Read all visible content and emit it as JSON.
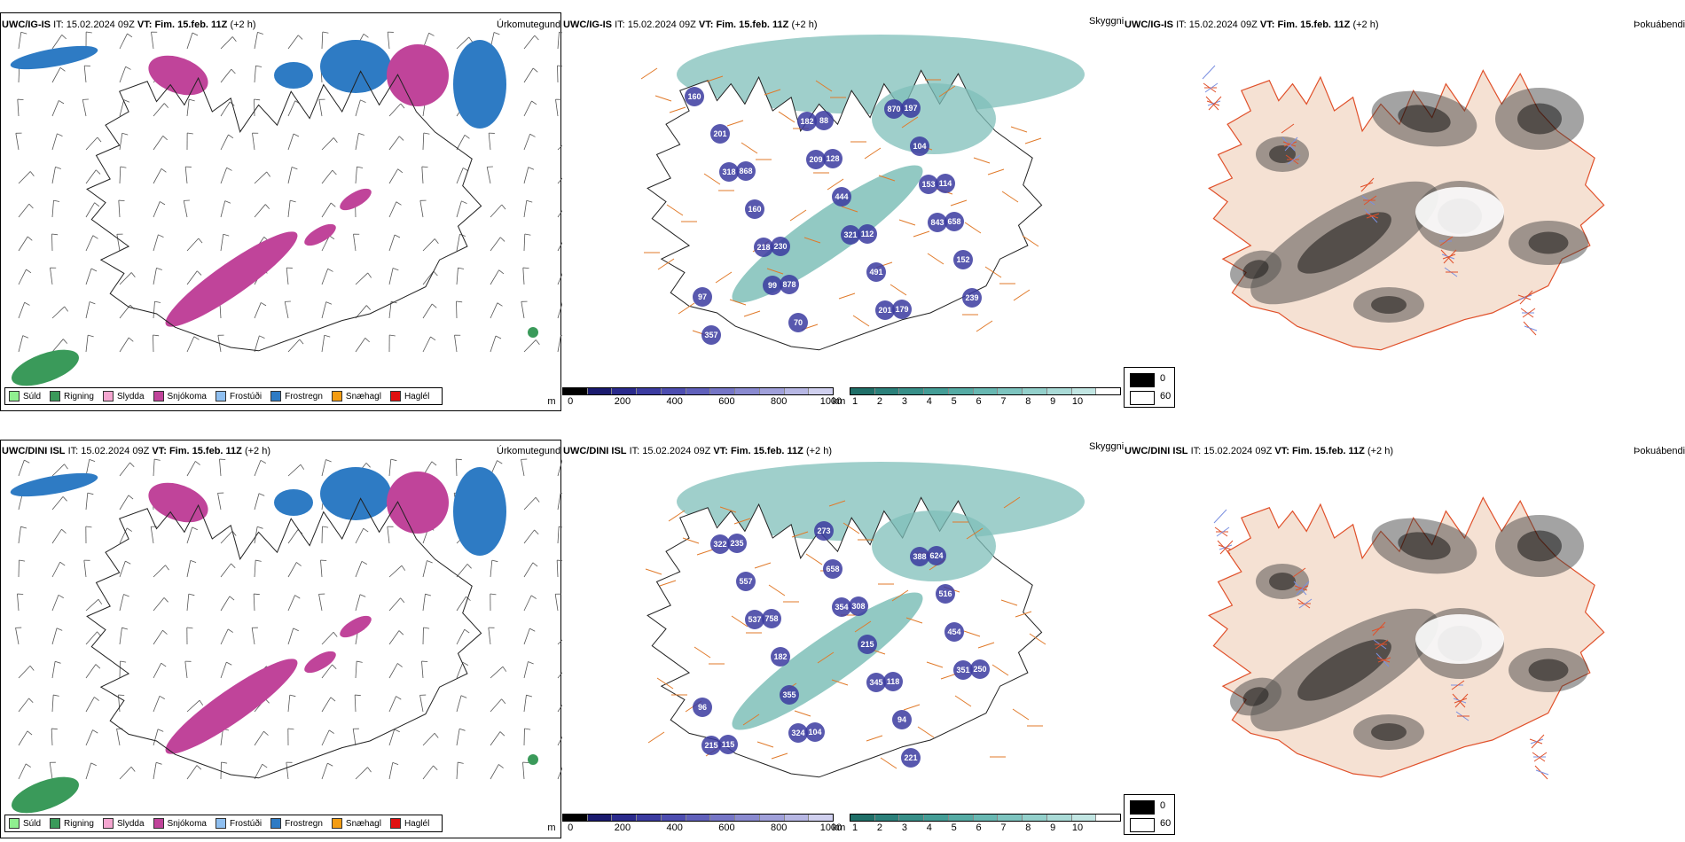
{
  "rows": [
    {
      "panel1": {
        "model": "UWC/IG-IS",
        "it_label": "IT:",
        "it_value": "15.02.2024 09Z",
        "vt_label": "VT:",
        "vt_value": "Fim. 15.feb. 11Z",
        "lead": "(+2 h)",
        "param": "Úrkomutegund"
      },
      "panel2": {
        "model": "UWC/IG-IS",
        "it_label": "IT:",
        "it_value": "15.02.2024 09Z",
        "vt_label": "VT:",
        "vt_value": "Fim. 15.feb. 11Z",
        "lead": "(+2 h)",
        "param": "Skyggni"
      },
      "panel3": {
        "model": "UWC/IG-IS",
        "it_label": "IT:",
        "it_value": "15.02.2024 09Z",
        "vt_label": "VT:",
        "vt_value": "Fim. 15.feb. 11Z",
        "lead": "(+2 h)",
        "param": "Þokuábendi"
      },
      "cloud_base_labels": [
        "160",
        "209",
        "843",
        "99",
        "870",
        "318",
        "321",
        "239",
        "182",
        "153",
        "218",
        "201",
        "201",
        "444",
        "152",
        "70",
        "104",
        "160",
        "491",
        "357",
        "128",
        "658",
        "878",
        "197",
        "868",
        "112",
        "97",
        "88",
        "114",
        "230",
        "179"
      ]
    },
    {
      "panel1": {
        "model": "UWC/DINI ISL",
        "it_label": "IT:",
        "it_value": "15.02.2024 09Z",
        "vt_label": "VT:",
        "vt_value": "Fim. 15.feb. 11Z",
        "lead": "(+2 h)",
        "param": "Úrkomutegund"
      },
      "panel2": {
        "model": "UWC/DINI ISL",
        "it_label": "IT:",
        "it_value": "15.02.2024 09Z",
        "vt_label": "VT:",
        "vt_value": "Fim. 15.feb. 11Z",
        "lead": "(+2 h)",
        "param": "Skyggni"
      },
      "panel3": {
        "model": "UWC/DINI ISL",
        "it_label": "IT:",
        "it_value": "15.02.2024 09Z",
        "vt_label": "VT:",
        "vt_value": "Fim. 15.feb. 11Z",
        "lead": "(+2 h)",
        "param": "Þokuábendi"
      },
      "cloud_base_labels": [
        "322",
        "354",
        "351",
        "324",
        "388",
        "537",
        "345",
        "215",
        "658",
        "454",
        "355",
        "221",
        "557",
        "215",
        "96",
        "273",
        "516",
        "182",
        "94",
        "235",
        "308",
        "250",
        "104",
        "624",
        "758",
        "118",
        "115"
      ]
    }
  ],
  "precip_legend": [
    {
      "label": "Súld",
      "color": "#90ee90"
    },
    {
      "label": "Rigning",
      "color": "#3a9a5a"
    },
    {
      "label": "Slydda",
      "color": "#f4a6d0"
    },
    {
      "label": "Snjókoma",
      "color": "#c0449a"
    },
    {
      "label": "Frostúði",
      "color": "#8fbff0"
    },
    {
      "label": "Frostregn",
      "color": "#2e7bc4"
    },
    {
      "label": "Snæhagl",
      "color": "#f39c12"
    },
    {
      "label": "Haglél",
      "color": "#e01010"
    }
  ],
  "cloud_base_bar": {
    "unit": "m",
    "ticks": [
      "0",
      "200",
      "400",
      "600",
      "800",
      "1000"
    ],
    "colors": [
      "#000000",
      "#1a1a6e",
      "#2a2a8c",
      "#3b3ba0",
      "#4d4db0",
      "#6060bb",
      "#7575c6",
      "#8a8ad0",
      "#a0a0da",
      "#b7b7e4",
      "#d0d0ef"
    ]
  },
  "visibility_bar": {
    "unit": "km",
    "ticks": [
      "1",
      "2",
      "3",
      "4",
      "5",
      "6",
      "7",
      "8",
      "9",
      "10"
    ],
    "colors": [
      "#1f6f68",
      "#2b807a",
      "#378f88",
      "#449d96",
      "#55aba4",
      "#68b8b2",
      "#7dc4bf",
      "#93d0cb",
      "#aadbd7",
      "#c2e6e3",
      "#ffffff"
    ]
  },
  "fog_legend": [
    {
      "label": "0",
      "color": "#000000"
    },
    {
      "label": "60",
      "color": "#ffffff"
    }
  ],
  "colors": {
    "coast": "#222222",
    "roads": "#e07a2a",
    "fog_land": "#f5e1d3",
    "fog_roads": "#e0502a",
    "fog_rivers": "#7a8fe0",
    "sea_vis": "#7fbfb9",
    "cloudbase": "#3b3ba0"
  }
}
